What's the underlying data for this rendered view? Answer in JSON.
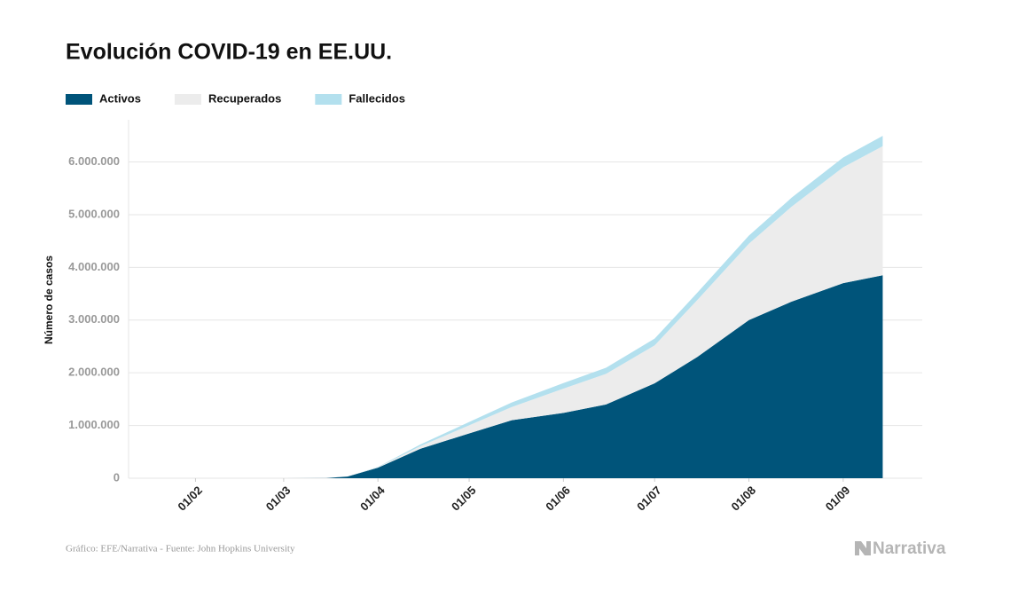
{
  "chart_data": {
    "type": "stacked-area",
    "title": "Evolución COVID-19 en EE.UU.",
    "y_label": "Número de casos",
    "source": "Gráfico: EFE/Narrativa - Fuente: John Hopkins University",
    "logo": "Narrativa",
    "x": [
      "22/01",
      "01/02",
      "01/03",
      "15/03",
      "22/03",
      "01/04",
      "15/04",
      "01/05",
      "15/05",
      "01/06",
      "15/06",
      "01/07",
      "15/07",
      "01/08",
      "15/08",
      "01/09",
      "14/09"
    ],
    "xlim": [
      "10/01",
      "27/09"
    ],
    "xticks": [
      "01/02",
      "01/03",
      "01/04",
      "01/05",
      "01/06",
      "01/07",
      "01/08",
      "01/09"
    ],
    "series": [
      {
        "name": "Activos",
        "color": "#00547a",
        "values": [
          0,
          0,
          0,
          3000,
          32000,
          200000,
          560000,
          850000,
          1100000,
          1240000,
          1400000,
          1800000,
          2300000,
          3000000,
          3350000,
          3700000,
          3850000
        ]
      },
      {
        "name": "Recuperados",
        "color": "#ececec",
        "values": [
          0,
          0,
          0,
          0,
          0,
          9000,
          50000,
          153000,
          250000,
          460000,
          580000,
          720000,
          1080000,
          1450000,
          1800000,
          2200000,
          2450000
        ]
      },
      {
        "name": "Fallecidos",
        "color": "#b3e0ee",
        "values": [
          0,
          0,
          0,
          60,
          400,
          5000,
          32000,
          63000,
          87000,
          105000,
          116000,
          128000,
          137000,
          153000,
          170000,
          184000,
          194000
        ]
      }
    ],
    "ylim": [
      0,
      6800000
    ],
    "yticks": [
      0,
      {
        "value": 1000000,
        "label": "1.000.000"
      },
      {
        "value": 2000000,
        "label": "2.000.000"
      },
      {
        "value": 3000000,
        "label": "3.000.000"
      },
      {
        "value": 4000000,
        "label": "4.000.000"
      },
      {
        "value": 5000000,
        "label": "5.000.000"
      },
      {
        "value": 6000000,
        "label": "6.000.000"
      }
    ],
    "grid": true
  }
}
